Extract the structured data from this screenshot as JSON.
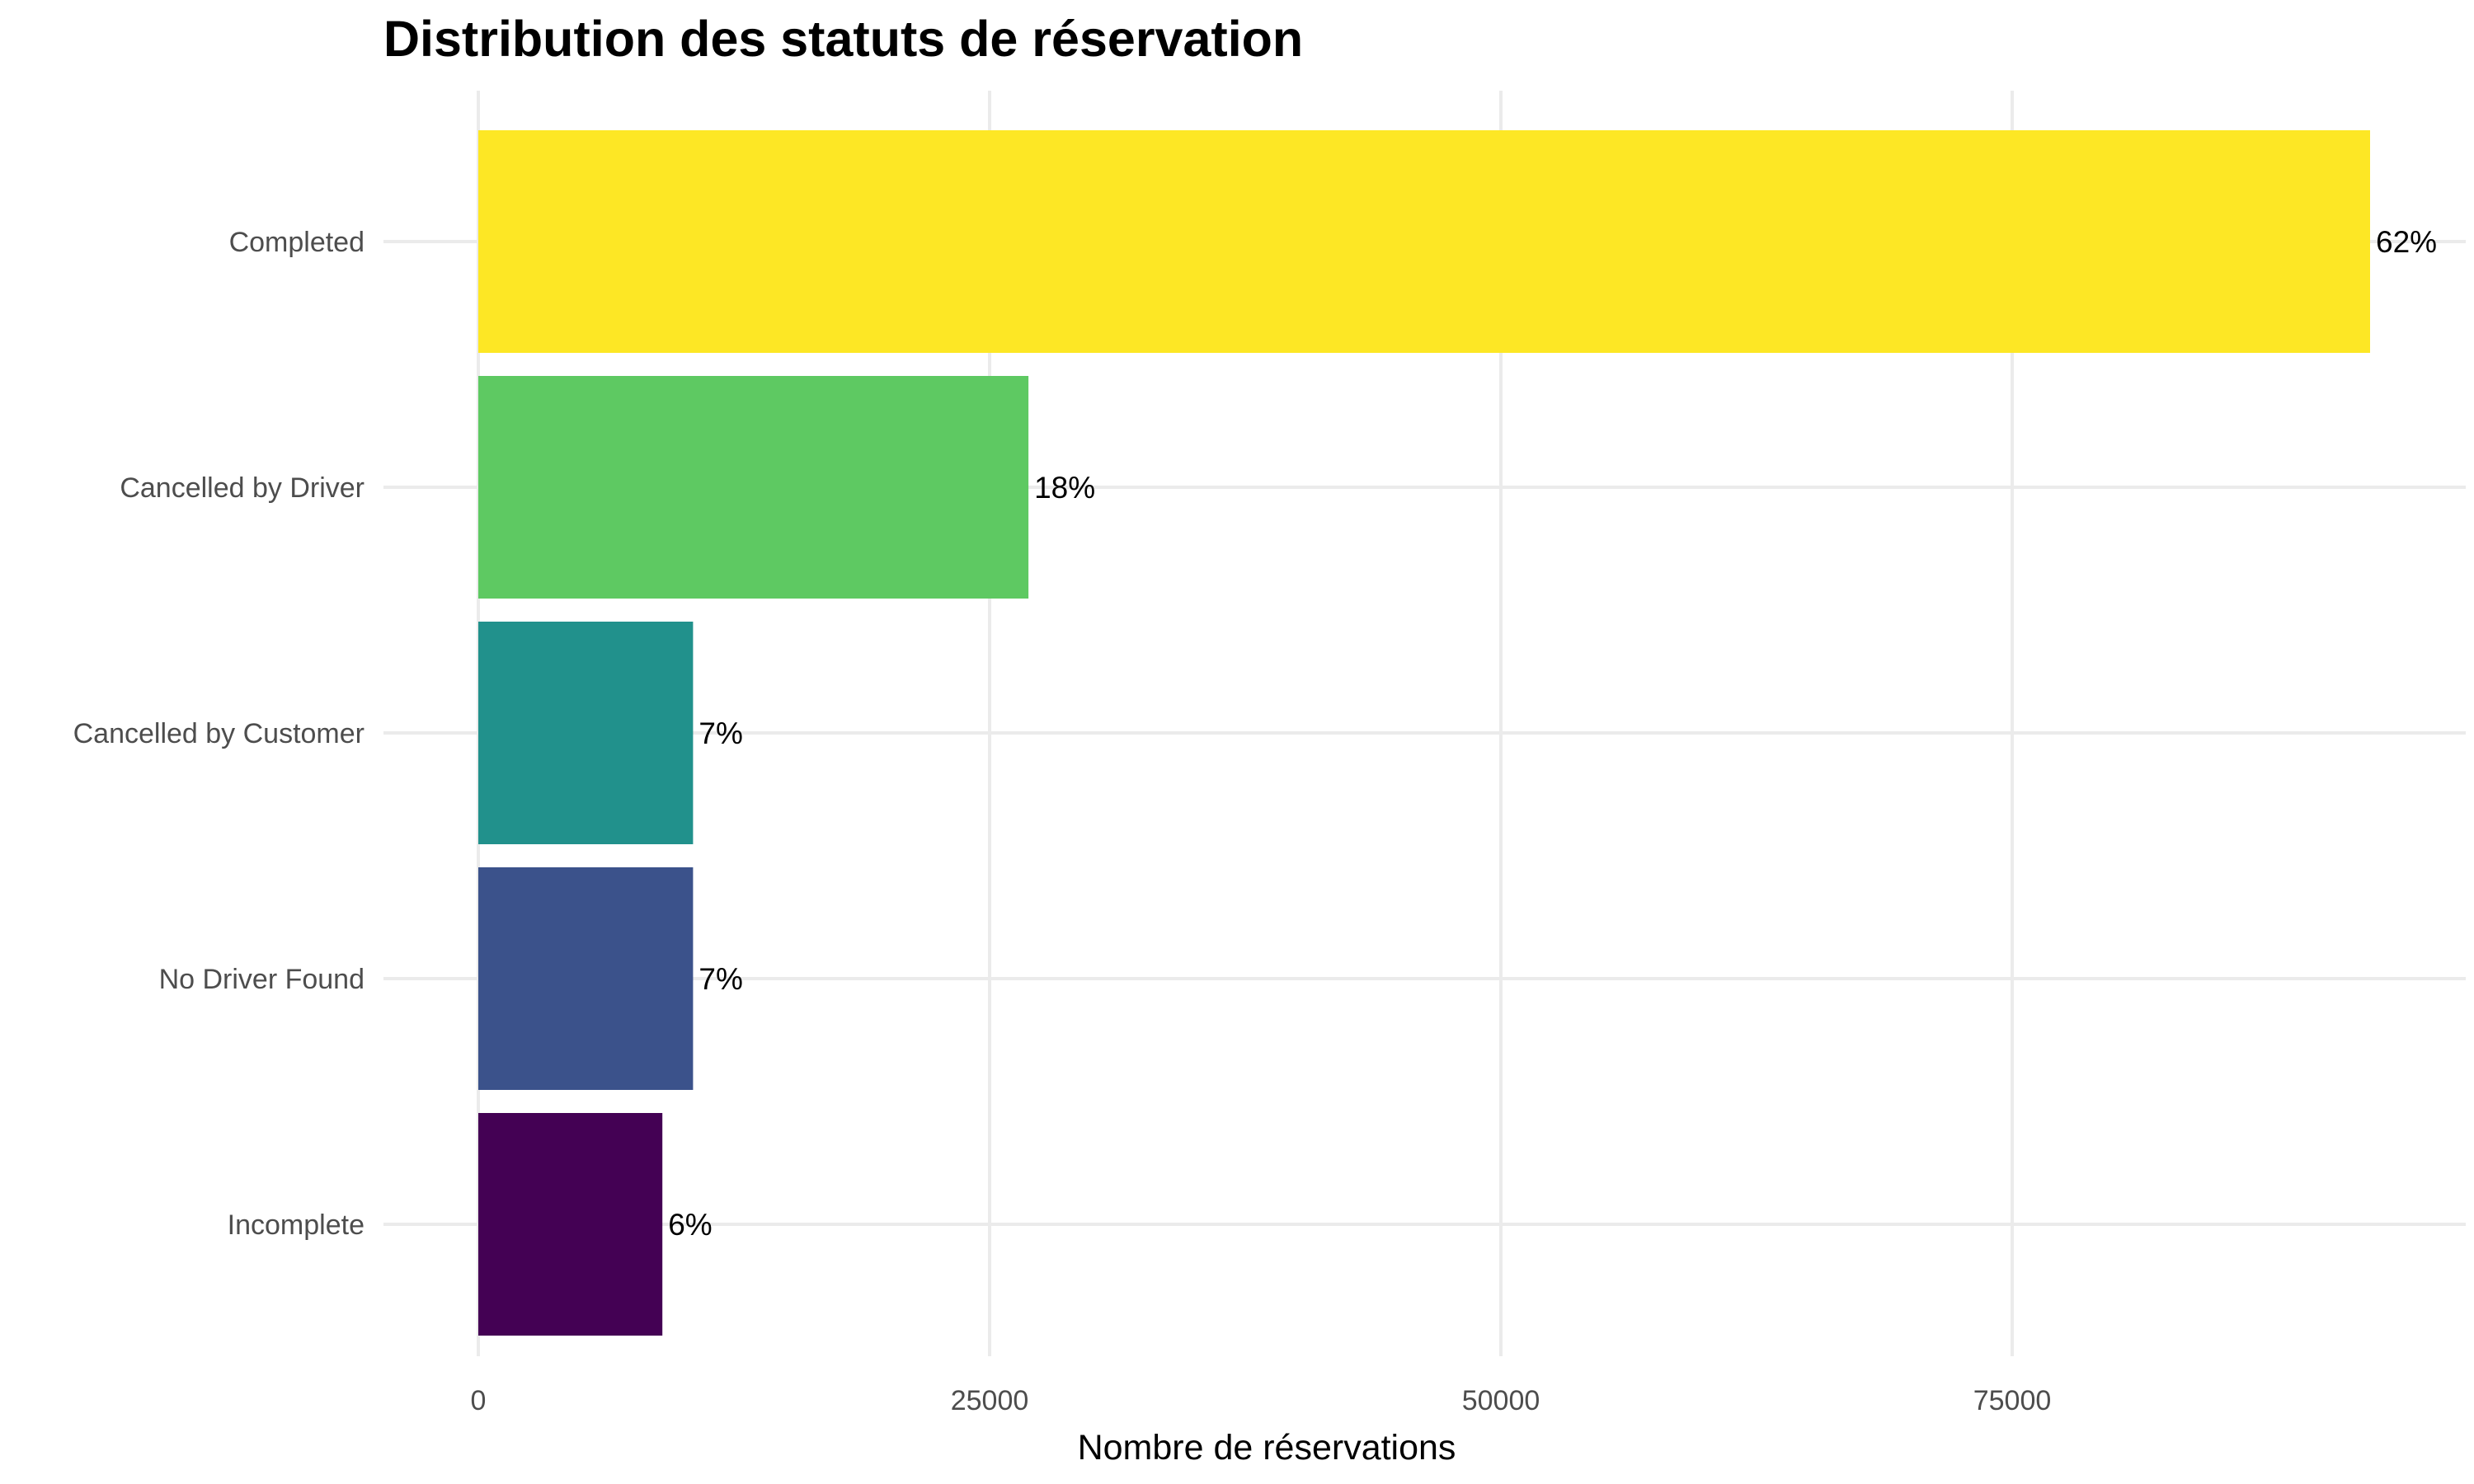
{
  "chart_data": {
    "type": "bar",
    "orientation": "horizontal",
    "title": "Distribution des statuts de réservation",
    "xlabel": "Nombre de réservations",
    "ylabel": "",
    "categories": [
      "Completed",
      "Cancelled by Driver",
      "Cancelled by Customer",
      "No Driver Found",
      "Incomplete"
    ],
    "values": [
      92500,
      26900,
      10500,
      10500,
      9000
    ],
    "labels": [
      "62%",
      "18%",
      "7%",
      "7%",
      "6%"
    ],
    "colors": [
      "#FDE725",
      "#5EC962",
      "#21918C",
      "#3B528B",
      "#440154"
    ],
    "xlim": [
      0,
      97000
    ],
    "xticks": [
      0,
      25000,
      50000,
      75000
    ],
    "xtick_labels": [
      "0",
      "25000",
      "50000",
      "75000"
    ],
    "grid": true,
    "legend": "none"
  }
}
